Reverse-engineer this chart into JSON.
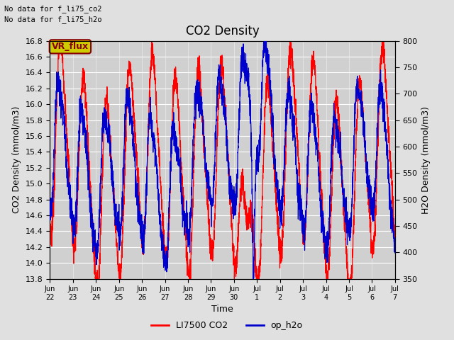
{
  "title": "CO2 Density",
  "xlabel": "Time",
  "ylabel_left": "CO2 Density (mmol/m3)",
  "ylabel_right": "H2O Density (mmol/m3)",
  "ylim_left": [
    13.8,
    16.8
  ],
  "ylim_right": [
    350,
    800
  ],
  "yticks_left": [
    13.8,
    14.0,
    14.2,
    14.4,
    14.6,
    14.8,
    15.0,
    15.2,
    15.4,
    15.6,
    15.8,
    16.0,
    16.2,
    16.4,
    16.6,
    16.8
  ],
  "yticks_right": [
    350,
    400,
    450,
    500,
    550,
    600,
    650,
    700,
    750,
    800
  ],
  "xtick_labels": [
    "Jun\n22",
    "Jun\n23",
    "Jun\n24",
    "Jun\n25",
    "Jun\n26",
    "Jun\n27",
    "Jun\n28",
    "Jun\n29",
    "Jun\n30",
    "Jul\n1",
    "Jul\n2",
    "Jul\n3",
    "Jul\n4",
    "Jul\n5",
    "Jul\n6",
    "Jul\n7"
  ],
  "text_no_data_co2": "No data for f_li75_co2",
  "text_no_data_h2o": "No data for f_li75_h2o",
  "vr_flux_label": "VR_flux",
  "legend_co2": "LI7500 CO2",
  "legend_h2o": "op_h2o",
  "line_color_co2": "#ff0000",
  "line_color_h2o": "#0000cc",
  "bg_color": "#e0e0e0",
  "plot_bg_color": "#d0d0d0",
  "grid_color": "#ffffff",
  "vr_flux_bg": "#cccc00",
  "vr_flux_text_color": "#880000"
}
